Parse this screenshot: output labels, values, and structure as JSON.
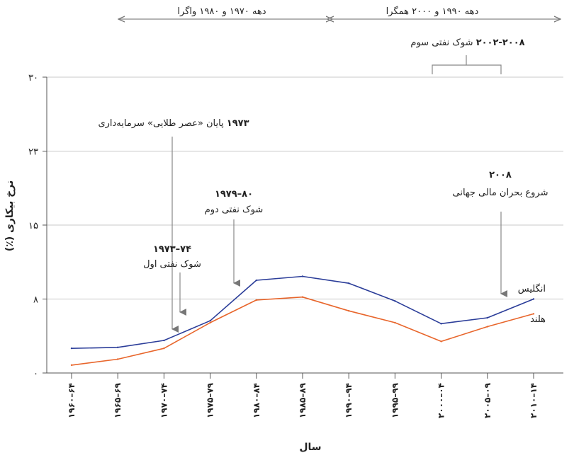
{
  "chart_data": {
    "type": "line",
    "title": "",
    "xlabel": "سال",
    "ylabel": "نرخ بیکاری (٪)",
    "categories": [
      "۱۹۶۰–۶۴",
      "۱۹۶۵–۶۹",
      "۱۹۷۰–۷۴",
      "۱۹۷۵–۷۹",
      "۱۹۸۰–۸۴",
      "۱۹۸۵–۸۹",
      "۱۹۹۰–۹۴",
      "۱۹۹۵–۹۹",
      "۲۰۰۰–۰۴",
      "۲۰۰۵–۰۹",
      "۲۰۱۰–۱۴"
    ],
    "yticks": [
      {
        "value": 0,
        "label": "۰"
      },
      {
        "value": 7.5,
        "label": "۸"
      },
      {
        "value": 15,
        "label": "۱۵"
      },
      {
        "value": 22.5,
        "label": "۲۳"
      },
      {
        "value": 30,
        "label": "۳۰"
      }
    ],
    "ylim": [
      0,
      30
    ],
    "grid": true,
    "series": [
      {
        "name": "انگلیس",
        "color": "#2b3d99",
        "values": [
          2.5,
          2.6,
          3.3,
          5.3,
          9.4,
          9.8,
          9.1,
          7.3,
          5.0,
          5.6,
          7.5
        ]
      },
      {
        "name": "هلند",
        "color": "#e8662c",
        "values": [
          0.8,
          1.4,
          2.5,
          5.1,
          7.4,
          7.7,
          6.3,
          5.1,
          3.2,
          4.7,
          6.0
        ]
      }
    ],
    "eras": [
      {
        "label": "دهه ۱۹۷۰ و ۱۹۸۰ واگرا"
      },
      {
        "label": "دهه ۱۹۹۰ و ۲۰۰۰ همگرا"
      }
    ],
    "annotations": [
      {
        "id": "oil3",
        "year": "۲۰۰۲-۲۰۰۸",
        "text": "شوک نفتی سوم"
      },
      {
        "id": "golden",
        "year": "۱۹۷۳",
        "text": "پایان «عصر طلایی» سرمایه‌داری"
      },
      {
        "id": "oil1",
        "year": "۱۹۷۳–۷۴",
        "text": "شوک نفتی اول"
      },
      {
        "id": "oil2",
        "year": "۱۹۷۹–۸۰",
        "text": "شوک نفتی دوم"
      },
      {
        "id": "crisis",
        "year": "۲۰۰۸",
        "text": "شروع بحران مالی جهانی"
      }
    ]
  }
}
